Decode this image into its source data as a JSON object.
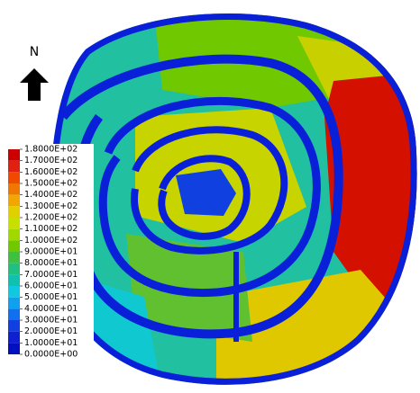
{
  "chart_data": {
    "type": "colorbar",
    "north_label": "N",
    "ticks": [
      {
        "value": 180,
        "label": "1.8000E+02"
      },
      {
        "value": 170,
        "label": "1.7000E+02"
      },
      {
        "value": 160,
        "label": "1.6000E+02"
      },
      {
        "value": 150,
        "label": "1.5000E+02"
      },
      {
        "value": 140,
        "label": "1.4000E+02"
      },
      {
        "value": 130,
        "label": "1.3000E+02"
      },
      {
        "value": 120,
        "label": "1.2000E+02"
      },
      {
        "value": 110,
        "label": "1.1000E+02"
      },
      {
        "value": 100,
        "label": "1.0000E+02"
      },
      {
        "value": 90,
        "label": "9.0000E+01"
      },
      {
        "value": 80,
        "label": "8.0000E+01"
      },
      {
        "value": 70,
        "label": "7.0000E+01"
      },
      {
        "value": 60,
        "label": "6.0000E+01"
      },
      {
        "value": 50,
        "label": "5.0000E+01"
      },
      {
        "value": 40,
        "label": "4.0000E+01"
      },
      {
        "value": 30,
        "label": "3.0000E+01"
      },
      {
        "value": 20,
        "label": "2.0000E+01"
      },
      {
        "value": 10,
        "label": "1.0000E+01"
      },
      {
        "value": 0,
        "label": "0.0000E+00"
      }
    ],
    "lim": [
      0,
      180
    ],
    "colors": [
      "#cc0000",
      "#e02010",
      "#f04a00",
      "#f07800",
      "#f0a800",
      "#e0d000",
      "#c8e000",
      "#a0d800",
      "#70c800",
      "#40c040",
      "#20c080",
      "#10c0b0",
      "#10c8e0",
      "#10a0f0",
      "#1070f0",
      "#1040e0",
      "#1020d0",
      "#0010c0"
    ]
  }
}
